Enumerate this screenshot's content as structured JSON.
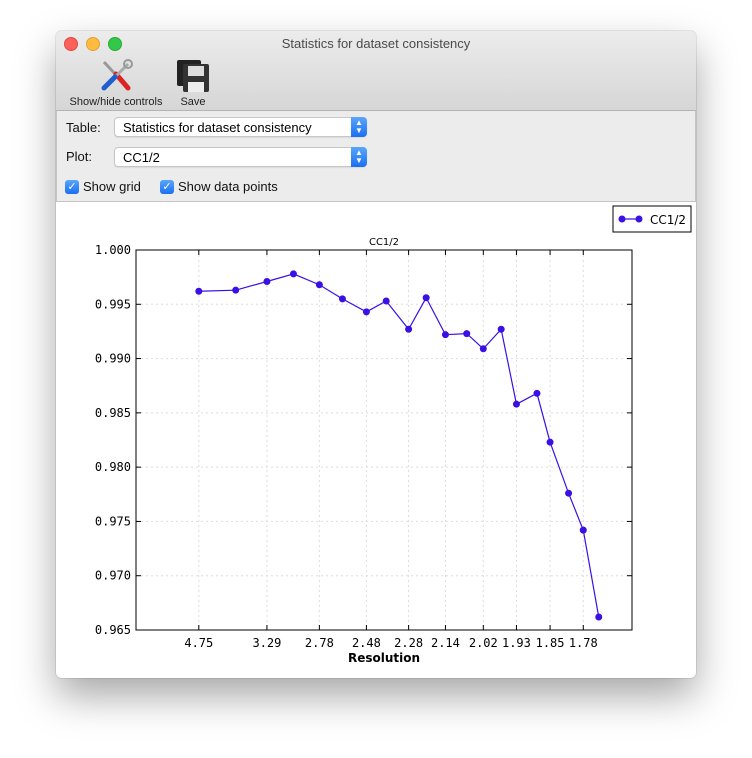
{
  "window": {
    "title": "Statistics for dataset consistency"
  },
  "toolbar": {
    "show_hide_label": "Show/hide controls",
    "save_label": "Save"
  },
  "controls": {
    "table_label": "Table:",
    "table_value": "Statistics for dataset consistency",
    "plot_label": "Plot:",
    "plot_value": "CC1/2",
    "show_grid_label": "Show grid",
    "show_grid_checked": true,
    "show_points_label": "Show data points",
    "show_points_checked": true
  },
  "colors": {
    "series": "#3a10e5",
    "accent": "#1a6ff1"
  },
  "chart_data": {
    "type": "line",
    "title": "CC1/2",
    "xlabel": "Resolution",
    "ylabel": "",
    "x_scale": "reciprocal-square (1/d^2), labeled in resolution",
    "xtick_labels": [
      "4.75",
      "3.29",
      "2.78",
      "2.48",
      "2.28",
      "2.14",
      "2.02",
      "1.93",
      "1.85",
      "1.78"
    ],
    "ytick_labels": [
      "0.965",
      "0.970",
      "0.975",
      "0.980",
      "0.985",
      "0.990",
      "0.995",
      "1.000"
    ],
    "ylim": [
      0.965,
      1.0
    ],
    "xlim_inv_d2": [
      0,
      0.35
    ],
    "grid": true,
    "markers": true,
    "legend": "top-right",
    "series": [
      {
        "name": "CC1/2",
        "x": [
          4.75,
          3.77,
          3.29,
          3.0,
          2.78,
          2.62,
          2.48,
          2.38,
          2.28,
          2.21,
          2.14,
          2.07,
          2.02,
          1.97,
          1.93,
          1.88,
          1.85,
          1.81,
          1.78,
          1.75
        ],
        "values": [
          0.9962,
          0.9963,
          0.9971,
          0.9978,
          0.9968,
          0.9955,
          0.9943,
          0.9953,
          0.9927,
          0.9956,
          0.9922,
          0.9923,
          0.9909,
          0.9927,
          0.9858,
          0.9868,
          0.9823,
          0.9776,
          0.9742,
          0.9662
        ]
      }
    ]
  }
}
